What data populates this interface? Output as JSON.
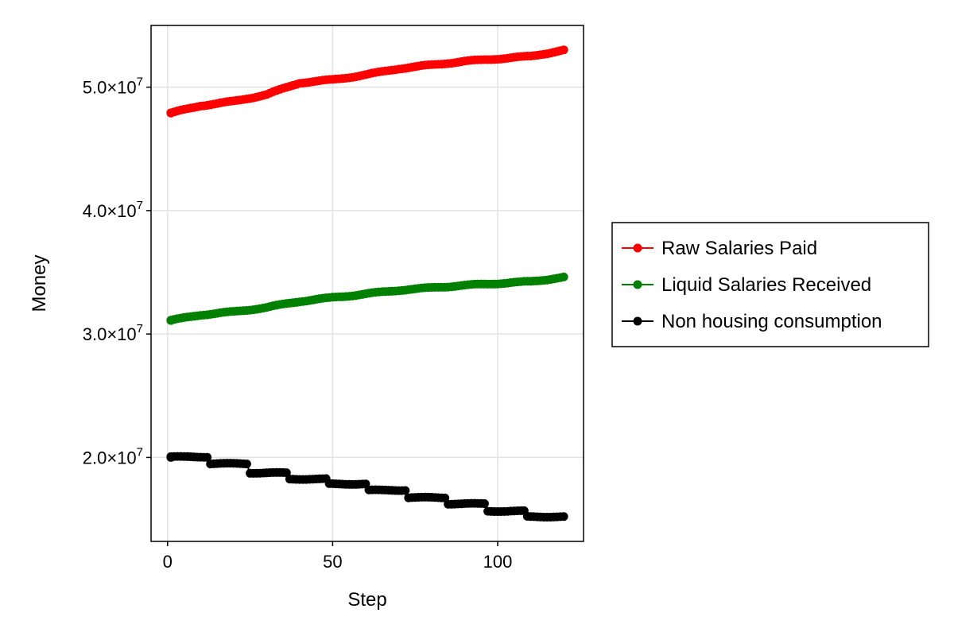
{
  "chart_data": {
    "type": "scatter",
    "xlabel": "Step",
    "ylabel": "Money",
    "xlim": [
      -5,
      126
    ],
    "ylim": [
      13200000,
      55000000
    ],
    "x_ticks": [
      0,
      50,
      100
    ],
    "x_tick_labels": [
      "0",
      "50",
      "100"
    ],
    "y_ticks": [
      20000000,
      30000000,
      40000000,
      50000000
    ],
    "y_tick_mantissas": [
      "2.0",
      "3.0",
      "4.0",
      "5.0"
    ],
    "y_tick_base": "×10",
    "y_tick_exponent": "7",
    "grid": true,
    "legend_position": "right",
    "series": [
      {
        "name": "Raw Salaries Paid",
        "color": "#ff0000",
        "start": [
          1,
          47900000
        ],
        "anchors": [
          [
            1,
            47900000
          ],
          [
            10,
            48500000
          ],
          [
            20,
            48850000
          ],
          [
            30,
            49400000
          ],
          [
            40,
            50350000
          ],
          [
            50,
            50600000
          ],
          [
            60,
            51000000
          ],
          [
            70,
            51500000
          ],
          [
            80,
            51800000
          ],
          [
            90,
            52100000
          ],
          [
            100,
            52300000
          ],
          [
            110,
            52500000
          ],
          [
            120,
            53000000
          ]
        ]
      },
      {
        "name": "Liquid Salaries Received",
        "color": "#008000",
        "start": [
          1,
          31100000
        ],
        "anchors": [
          [
            1,
            31100000
          ],
          [
            10,
            31550000
          ],
          [
            20,
            31800000
          ],
          [
            30,
            32150000
          ],
          [
            40,
            32650000
          ],
          [
            50,
            32950000
          ],
          [
            60,
            33250000
          ],
          [
            70,
            33550000
          ],
          [
            80,
            33750000
          ],
          [
            90,
            33950000
          ],
          [
            100,
            34100000
          ],
          [
            110,
            34250000
          ],
          [
            120,
            34600000
          ]
        ]
      },
      {
        "name": "Non housing consumption",
        "color": "#000000",
        "start": [
          1,
          20000000
        ],
        "steps": [
          [
            1,
            20050000
          ],
          [
            13,
            19500000
          ],
          [
            25,
            18750000
          ],
          [
            37,
            18250000
          ],
          [
            49,
            17850000
          ],
          [
            61,
            17350000
          ],
          [
            73,
            16750000
          ],
          [
            85,
            16250000
          ],
          [
            97,
            15650000
          ],
          [
            109,
            15200000
          ]
        ],
        "end": 120
      }
    ]
  }
}
